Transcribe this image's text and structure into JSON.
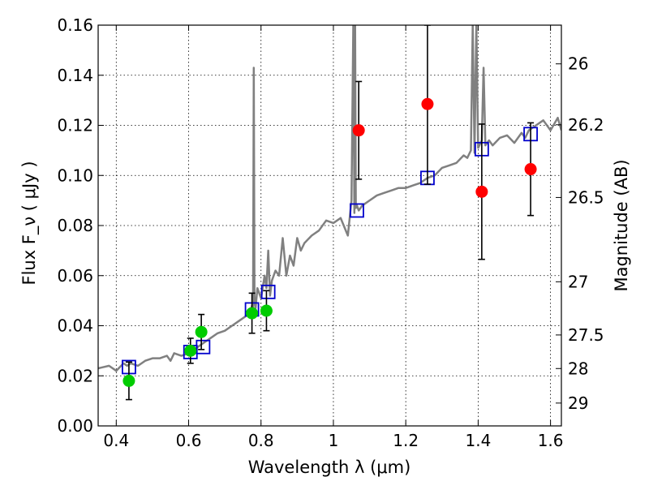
{
  "chart_data": {
    "type": "scatter",
    "xlabel": "Wavelength  λ (μm)",
    "ylabel": "Flux  F_ν  ( μJy )",
    "ylabel_right": "Magnitude (AB)",
    "xlim": [
      0.35,
      1.63
    ],
    "ylim": [
      0.0,
      0.16
    ],
    "grid": true,
    "x_ticks": [
      0.4,
      0.6,
      0.8,
      1.0,
      1.2,
      1.4,
      1.6
    ],
    "x_tick_labels": [
      "0.4",
      "0.6",
      "0.8",
      "1",
      "1.2",
      "1.4",
      "1.6"
    ],
    "y_ticks": [
      0.0,
      0.02,
      0.04,
      0.06,
      0.08,
      0.1,
      0.12,
      0.14,
      0.16
    ],
    "y_tick_labels": [
      "0.00",
      "0.02",
      "0.04",
      "0.06",
      "0.08",
      "0.10",
      "0.12",
      "0.14",
      "0.16"
    ],
    "right_ticks": [
      {
        "label": "26",
        "mag": 26.0
      },
      {
        "label": "26.2",
        "mag": 26.2
      },
      {
        "label": "26.5",
        "mag": 26.5
      },
      {
        "label": "27",
        "mag": 27.0
      },
      {
        "label": "27.5",
        "mag": 27.5
      },
      {
        "label": "28",
        "mag": 28.0
      },
      {
        "label": "29",
        "mag": 29.0
      }
    ],
    "series": [
      {
        "kind": "line",
        "color": "#808080",
        "x": [
          0.35,
          0.38,
          0.4,
          0.42,
          0.43,
          0.44,
          0.46,
          0.48,
          0.5,
          0.52,
          0.54,
          0.55,
          0.56,
          0.58,
          0.6,
          0.62,
          0.64,
          0.66,
          0.68,
          0.7,
          0.72,
          0.74,
          0.76,
          0.77,
          0.775,
          0.778,
          0.78,
          0.782,
          0.785,
          0.79,
          0.8,
          0.81,
          0.815,
          0.82,
          0.825,
          0.83,
          0.84,
          0.85,
          0.86,
          0.87,
          0.88,
          0.89,
          0.9,
          0.91,
          0.92,
          0.94,
          0.96,
          0.98,
          1.0,
          1.02,
          1.04,
          1.05,
          1.055,
          1.058,
          1.06,
          1.062,
          1.065,
          1.07,
          1.08,
          1.1,
          1.12,
          1.14,
          1.16,
          1.18,
          1.2,
          1.22,
          1.24,
          1.26,
          1.28,
          1.3,
          1.32,
          1.34,
          1.36,
          1.37,
          1.38,
          1.385,
          1.39,
          1.395,
          1.4,
          1.41,
          1.415,
          1.42,
          1.43,
          1.44,
          1.46,
          1.48,
          1.5,
          1.52,
          1.53,
          1.54,
          1.56,
          1.58,
          1.6,
          1.62,
          1.63
        ],
        "y": [
          0.023,
          0.024,
          0.022,
          0.025,
          0.024,
          0.025,
          0.024,
          0.026,
          0.027,
          0.027,
          0.028,
          0.026,
          0.029,
          0.028,
          0.029,
          0.031,
          0.033,
          0.035,
          0.037,
          0.038,
          0.04,
          0.042,
          0.044,
          0.045,
          0.048,
          0.046,
          0.143,
          0.05,
          0.047,
          0.055,
          0.051,
          0.06,
          0.055,
          0.07,
          0.052,
          0.058,
          0.062,
          0.06,
          0.075,
          0.06,
          0.068,
          0.064,
          0.075,
          0.07,
          0.073,
          0.076,
          0.078,
          0.082,
          0.081,
          0.083,
          0.076,
          0.09,
          0.16,
          0.085,
          0.16,
          0.087,
          0.088,
          0.086,
          0.088,
          0.09,
          0.092,
          0.093,
          0.094,
          0.095,
          0.095,
          0.096,
          0.097,
          0.099,
          0.1,
          0.103,
          0.104,
          0.105,
          0.108,
          0.107,
          0.11,
          0.16,
          0.109,
          0.16,
          0.111,
          0.114,
          0.143,
          0.112,
          0.114,
          0.112,
          0.115,
          0.116,
          0.113,
          0.117,
          0.115,
          0.118,
          0.12,
          0.122,
          0.118,
          0.123,
          0.118
        ]
      },
      {
        "kind": "open-square",
        "color": "#0000cc",
        "x": [
          0.435,
          0.605,
          0.64,
          0.775,
          0.82,
          1.065,
          1.26,
          1.41,
          1.545
        ],
        "y": [
          0.0235,
          0.0295,
          0.0315,
          0.0465,
          0.0535,
          0.086,
          0.099,
          0.1105,
          0.1165
        ]
      },
      {
        "kind": "filled-circle",
        "color": "#00cc00",
        "x": [
          0.435,
          0.605,
          0.635,
          0.775,
          0.815
        ],
        "y": [
          0.018,
          0.03,
          0.0375,
          0.045,
          0.046
        ],
        "yerr": [
          0.0075,
          0.005,
          0.007,
          0.008,
          0.008
        ]
      },
      {
        "kind": "filled-circle",
        "color": "#ff0000",
        "x": [
          1.07,
          1.26,
          1.41,
          1.545
        ],
        "y": [
          0.118,
          0.1285,
          0.0935,
          0.1025
        ],
        "yerr": [
          0.0195,
          0.032,
          0.027,
          0.0185
        ]
      }
    ]
  }
}
